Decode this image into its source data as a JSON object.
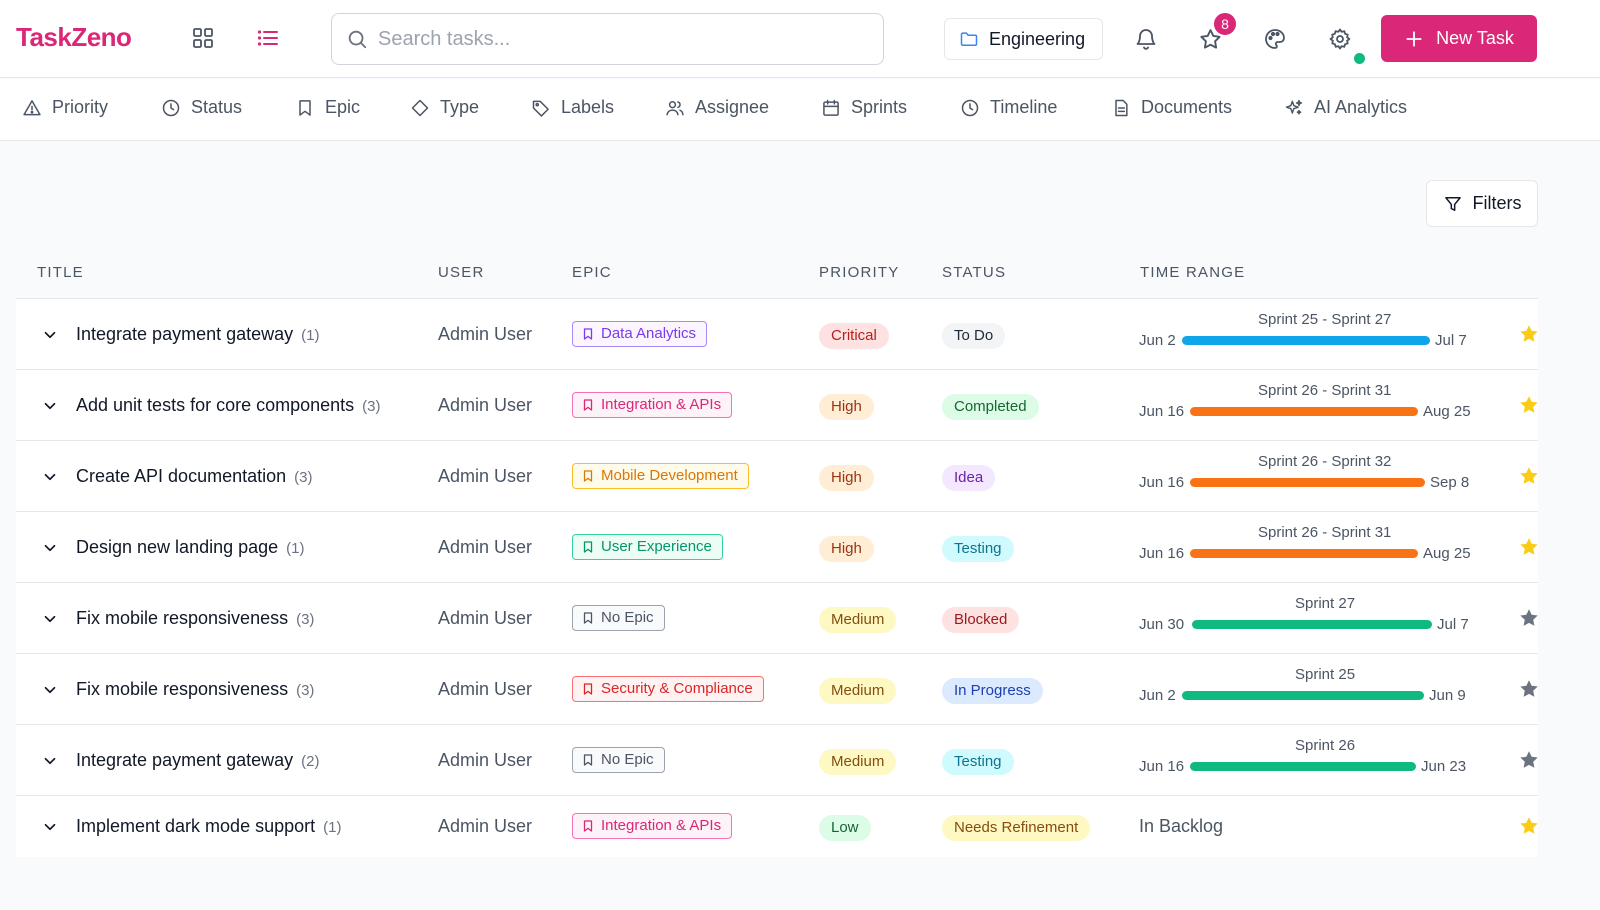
{
  "app": {
    "name": "TaskZeno"
  },
  "search": {
    "placeholder": "Search tasks..."
  },
  "project": {
    "label": "Engineering"
  },
  "notifications": {
    "star_badge": "8"
  },
  "new_task_label": "New Task",
  "tabs": [
    {
      "label": "Priority",
      "icon": "warning-icon"
    },
    {
      "label": "Status",
      "icon": "clock-icon"
    },
    {
      "label": "Epic",
      "icon": "bookmark-icon"
    },
    {
      "label": "Type",
      "icon": "diamond-icon"
    },
    {
      "label": "Labels",
      "icon": "tag-icon"
    },
    {
      "label": "Assignee",
      "icon": "users-icon"
    },
    {
      "label": "Sprints",
      "icon": "calendar-icon"
    },
    {
      "label": "Timeline",
      "icon": "clock-icon"
    },
    {
      "label": "Documents",
      "icon": "document-icon"
    },
    {
      "label": "AI Analytics",
      "icon": "sparkles-icon"
    }
  ],
  "filters_label": "Filters",
  "columns": [
    "TITLE",
    "USER",
    "EPIC",
    "PRIORITY",
    "STATUS",
    "TIME RANGE"
  ],
  "colors": {
    "brand": "#db2777",
    "bar_critical": "#0ea5e9",
    "bar_high": "#f97316",
    "bar_medium": "#10b981",
    "star_on": "#facc15",
    "star_off": "#6b7280"
  },
  "rows": [
    {
      "title": "Integrate payment gateway",
      "count": "(1)",
      "user": "Admin User",
      "epic": "Data Analytics",
      "epic_style": "purple",
      "priority": "Critical",
      "priority_style": "critical",
      "status": "To Do",
      "status_style": "todo",
      "sprint": "Sprint 25 - Sprint 27",
      "start": "Jun 2",
      "end": "Jul 7",
      "bar": "critical",
      "starred": true
    },
    {
      "title": "Add unit tests for core components",
      "count": "(3)",
      "user": "Admin User",
      "epic": "Integration & APIs",
      "epic_style": "pink",
      "priority": "High",
      "priority_style": "high",
      "status": "Completed",
      "status_style": "completed",
      "sprint": "Sprint 26 - Sprint 31",
      "start": "Jun 16",
      "end": "Aug 25",
      "bar": "high",
      "starred": true
    },
    {
      "title": "Create API documentation",
      "count": "(3)",
      "user": "Admin User",
      "epic": "Mobile Development",
      "epic_style": "orange",
      "priority": "High",
      "priority_style": "high",
      "status": "Idea",
      "status_style": "idea",
      "sprint": "Sprint 26 - Sprint 32",
      "start": "Jun 16",
      "end": "Sep 8",
      "bar": "high",
      "starred": true
    },
    {
      "title": "Design new landing page",
      "count": "(1)",
      "user": "Admin User",
      "epic": "User Experience",
      "epic_style": "green",
      "priority": "High",
      "priority_style": "high",
      "status": "Testing",
      "status_style": "testing",
      "sprint": "Sprint 26 - Sprint 31",
      "start": "Jun 16",
      "end": "Aug 25",
      "bar": "high",
      "starred": true
    },
    {
      "title": "Fix mobile responsiveness",
      "count": "(3)",
      "user": "Admin User",
      "epic": "No Epic",
      "epic_style": "gray",
      "priority": "Medium",
      "priority_style": "medium",
      "status": "Blocked",
      "status_style": "blocked",
      "sprint": "Sprint 27",
      "start": "Jun 30",
      "end": "Jul 7",
      "bar": "medium",
      "starred": false
    },
    {
      "title": "Fix mobile responsiveness",
      "count": "(3)",
      "user": "Admin User",
      "epic": "Security & Compliance",
      "epic_style": "red",
      "priority": "Medium",
      "priority_style": "medium",
      "status": "In Progress",
      "status_style": "inprogress",
      "sprint": "Sprint 25",
      "start": "Jun 2",
      "end": "Jun 9",
      "bar": "medium",
      "starred": false
    },
    {
      "title": "Integrate payment gateway",
      "count": "(2)",
      "user": "Admin User",
      "epic": "No Epic",
      "epic_style": "gray",
      "priority": "Medium",
      "priority_style": "medium",
      "status": "Testing",
      "status_style": "testing",
      "sprint": "Sprint 26",
      "start": "Jun 16",
      "end": "Jun 23",
      "bar": "medium",
      "starred": false
    },
    {
      "title": "Implement dark mode support",
      "count": "(1)",
      "user": "Admin User",
      "epic": "Integration & APIs",
      "epic_style": "pink",
      "priority": "Low",
      "priority_style": "low",
      "status": "Needs Refinement",
      "status_style": "refinement",
      "backlog": "In Backlog",
      "starred": true
    }
  ]
}
